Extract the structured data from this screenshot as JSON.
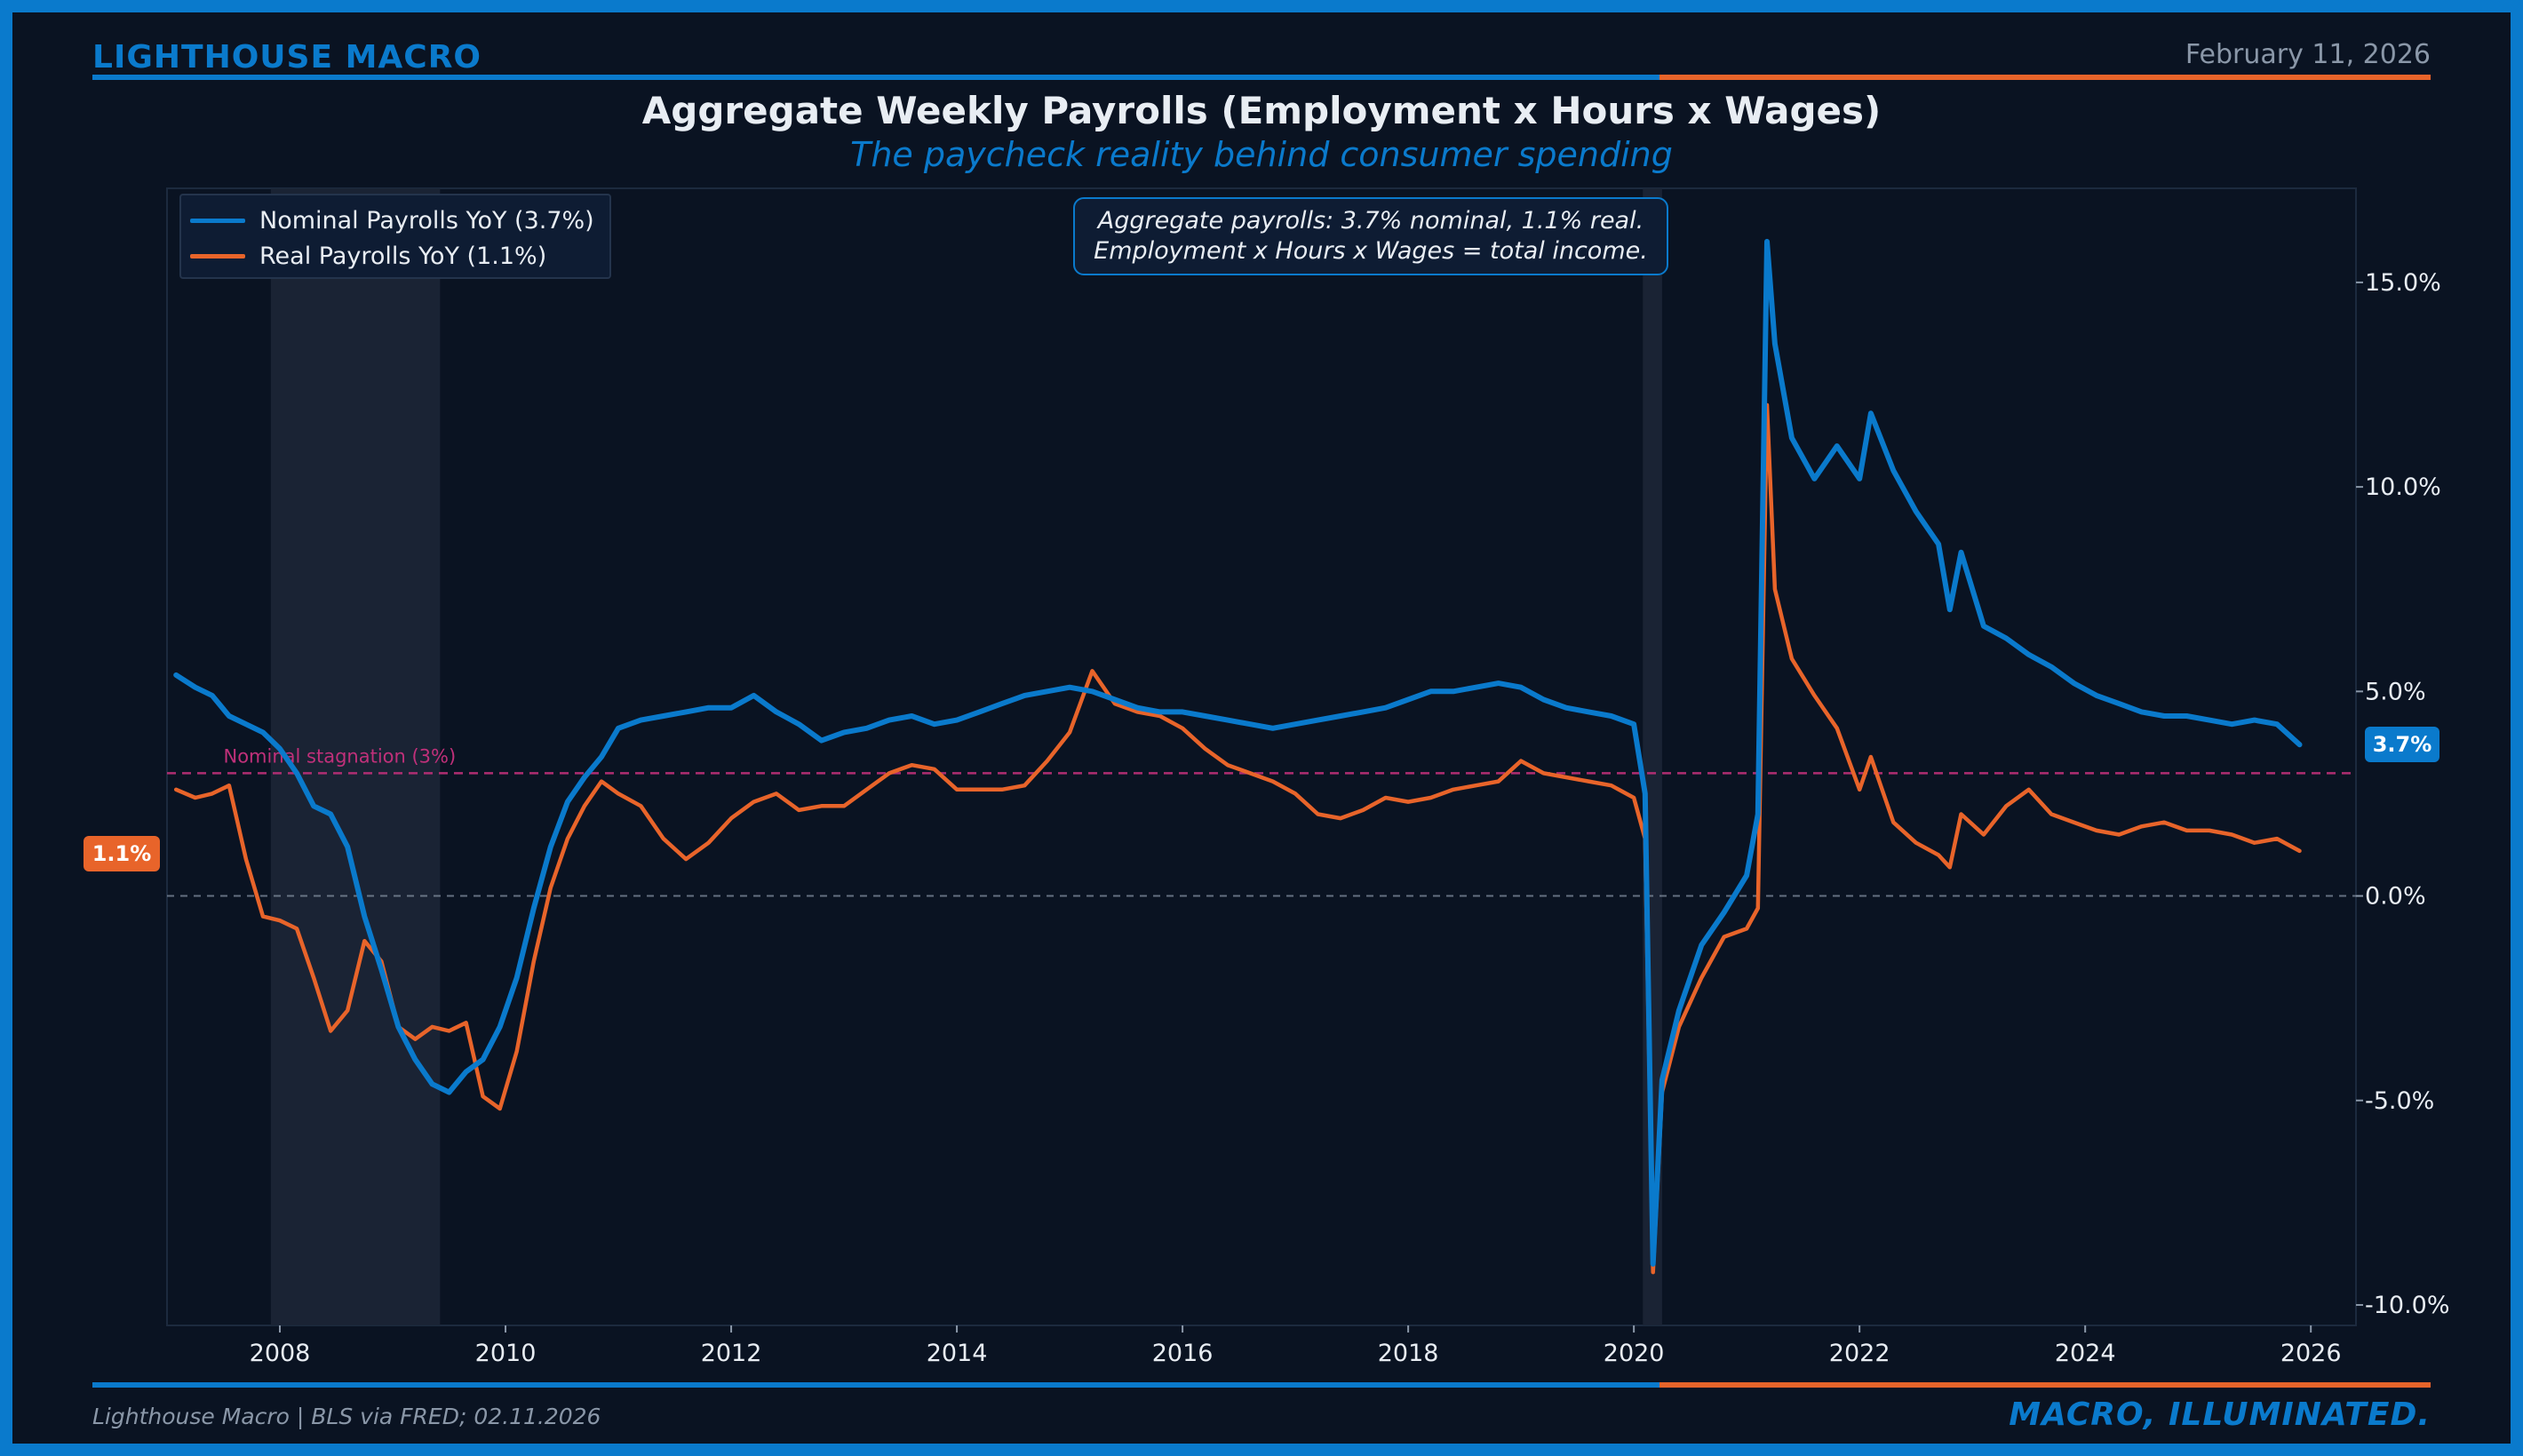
{
  "header": {
    "brand": "LIGHTHOUSE MACRO",
    "date": "February 11, 2026"
  },
  "footer": {
    "source": "Lighthouse Macro | BLS via FRED; 02.11.2026",
    "tagline": "MACRO, ILLUMINATED."
  },
  "colors": {
    "background": "#0a1322",
    "brand_blue": "#0a7acc",
    "nominal": "#0a7acc",
    "real": "#e8642a",
    "stagnation": "#c0307a",
    "recession_shade": "#1c2636"
  },
  "annotation": {
    "line1": "Aggregate payrolls: 3.7% nominal, 1.1% real.",
    "line2": "Employment x Hours x Wages = total income."
  },
  "badges": {
    "nominal_latest": "3.7%",
    "real_latest": "1.1%"
  },
  "chart_data": {
    "type": "line",
    "title": "Aggregate Weekly Payrolls (Employment x Hours x Wages)",
    "subtitle": "The paycheck reality behind consumer spending",
    "xlabel": "",
    "ylabel": "",
    "y_axis_side": "right",
    "xlim": [
      2007.0,
      2026.4
    ],
    "ylim": [
      -10.5,
      17.3
    ],
    "x_ticks": [
      2008,
      2010,
      2012,
      2014,
      2016,
      2018,
      2020,
      2022,
      2024,
      2026
    ],
    "x_tick_labels": [
      "2008",
      "2010",
      "2012",
      "2014",
      "2016",
      "2018",
      "2020",
      "2022",
      "2024",
      "2026"
    ],
    "y_ticks": [
      -10,
      -5,
      0,
      5,
      10,
      15
    ],
    "y_tick_labels": [
      "-10.0%",
      "-5.0%",
      "0.0%",
      "5.0%",
      "10.0%",
      "15.0%"
    ],
    "legend_position": "top-left",
    "recessions": [
      {
        "start": 2007.92,
        "end": 2009.42
      },
      {
        "start": 2020.08,
        "end": 2020.25
      }
    ],
    "reference_lines": [
      {
        "y": 3.0,
        "label": "Nominal stagnation (3%)",
        "style": "dashed"
      },
      {
        "y": 0.0,
        "label": "",
        "style": "dashed"
      }
    ],
    "series": [
      {
        "name": "Nominal Payrolls YoY (3.7%)",
        "x": [
          2007.08,
          2007.25,
          2007.4,
          2007.55,
          2007.7,
          2007.85,
          2008.0,
          2008.15,
          2008.3,
          2008.45,
          2008.6,
          2008.75,
          2008.9,
          2009.05,
          2009.2,
          2009.35,
          2009.5,
          2009.65,
          2009.8,
          2009.95,
          2010.1,
          2010.25,
          2010.4,
          2010.55,
          2010.7,
          2010.85,
          2011.0,
          2011.2,
          2011.4,
          2011.6,
          2011.8,
          2012.0,
          2012.2,
          2012.4,
          2012.6,
          2012.8,
          2013.0,
          2013.2,
          2013.4,
          2013.6,
          2013.8,
          2014.0,
          2014.2,
          2014.4,
          2014.6,
          2014.8,
          2015.0,
          2015.2,
          2015.4,
          2015.6,
          2015.8,
          2016.0,
          2016.2,
          2016.4,
          2016.6,
          2016.8,
          2017.0,
          2017.2,
          2017.4,
          2017.6,
          2017.8,
          2018.0,
          2018.2,
          2018.4,
          2018.6,
          2018.8,
          2019.0,
          2019.2,
          2019.4,
          2019.6,
          2019.8,
          2020.0,
          2020.1,
          2020.17,
          2020.25,
          2020.4,
          2020.6,
          2020.8,
          2021.0,
          2021.1,
          2021.18,
          2021.25,
          2021.4,
          2021.6,
          2021.8,
          2022.0,
          2022.1,
          2022.3,
          2022.5,
          2022.7,
          2022.8,
          2022.9,
          2023.1,
          2023.3,
          2023.5,
          2023.7,
          2023.9,
          2024.1,
          2024.3,
          2024.5,
          2024.7,
          2024.9,
          2025.1,
          2025.3,
          2025.5,
          2025.7,
          2025.9
        ],
        "values": [
          5.4,
          5.1,
          4.9,
          4.4,
          4.2,
          4.0,
          3.6,
          3.0,
          2.2,
          2.0,
          1.2,
          -0.5,
          -1.8,
          -3.2,
          -4.0,
          -4.6,
          -4.8,
          -4.3,
          -4.0,
          -3.2,
          -2.0,
          -0.3,
          1.2,
          2.3,
          2.9,
          3.4,
          4.1,
          4.3,
          4.4,
          4.5,
          4.6,
          4.6,
          4.9,
          4.5,
          4.2,
          3.8,
          4.0,
          4.1,
          4.3,
          4.4,
          4.2,
          4.3,
          4.5,
          4.7,
          4.9,
          5.0,
          5.1,
          5.0,
          4.8,
          4.6,
          4.5,
          4.5,
          4.4,
          4.3,
          4.2,
          4.1,
          4.2,
          4.3,
          4.4,
          4.5,
          4.6,
          4.8,
          5.0,
          5.0,
          5.1,
          5.2,
          5.1,
          4.8,
          4.6,
          4.5,
          4.4,
          4.2,
          2.5,
          -9.0,
          -4.5,
          -2.8,
          -1.2,
          -0.4,
          0.5,
          2.0,
          16.0,
          13.5,
          11.2,
          10.2,
          11.0,
          10.2,
          11.8,
          10.4,
          9.4,
          8.6,
          7.0,
          8.4,
          6.6,
          6.3,
          5.9,
          5.6,
          5.2,
          4.9,
          4.7,
          4.5,
          4.4,
          4.4,
          4.3,
          4.2,
          4.3,
          4.2,
          3.7
        ]
      },
      {
        "name": "Real Payrolls YoY (1.1%)",
        "x": [
          2007.08,
          2007.25,
          2007.4,
          2007.55,
          2007.7,
          2007.85,
          2008.0,
          2008.15,
          2008.3,
          2008.45,
          2008.6,
          2008.75,
          2008.9,
          2009.05,
          2009.2,
          2009.35,
          2009.5,
          2009.65,
          2009.8,
          2009.95,
          2010.1,
          2010.25,
          2010.4,
          2010.55,
          2010.7,
          2010.85,
          2011.0,
          2011.2,
          2011.4,
          2011.6,
          2011.8,
          2012.0,
          2012.2,
          2012.4,
          2012.6,
          2012.8,
          2013.0,
          2013.2,
          2013.4,
          2013.6,
          2013.8,
          2014.0,
          2014.2,
          2014.4,
          2014.6,
          2014.8,
          2015.0,
          2015.2,
          2015.4,
          2015.6,
          2015.8,
          2016.0,
          2016.2,
          2016.4,
          2016.6,
          2016.8,
          2017.0,
          2017.2,
          2017.4,
          2017.6,
          2017.8,
          2018.0,
          2018.2,
          2018.4,
          2018.6,
          2018.8,
          2019.0,
          2019.2,
          2019.4,
          2019.6,
          2019.8,
          2020.0,
          2020.1,
          2020.17,
          2020.25,
          2020.4,
          2020.6,
          2020.8,
          2021.0,
          2021.1,
          2021.18,
          2021.25,
          2021.4,
          2021.6,
          2021.8,
          2022.0,
          2022.1,
          2022.3,
          2022.5,
          2022.7,
          2022.8,
          2022.9,
          2023.1,
          2023.3,
          2023.5,
          2023.7,
          2023.9,
          2024.1,
          2024.3,
          2024.5,
          2024.7,
          2024.9,
          2025.1,
          2025.3,
          2025.5,
          2025.7,
          2025.9
        ],
        "values": [
          2.6,
          2.4,
          2.5,
          2.7,
          0.9,
          -0.5,
          -0.6,
          -0.8,
          -2.0,
          -3.3,
          -2.8,
          -1.1,
          -1.6,
          -3.2,
          -3.5,
          -3.2,
          -3.3,
          -3.1,
          -4.9,
          -5.2,
          -3.8,
          -1.6,
          0.2,
          1.4,
          2.2,
          2.8,
          2.5,
          2.2,
          1.4,
          0.9,
          1.3,
          1.9,
          2.3,
          2.5,
          2.1,
          2.2,
          2.2,
          2.6,
          3.0,
          3.2,
          3.1,
          2.6,
          2.6,
          2.6,
          2.7,
          3.3,
          4.0,
          5.5,
          4.7,
          4.5,
          4.4,
          4.1,
          3.6,
          3.2,
          3.0,
          2.8,
          2.5,
          2.0,
          1.9,
          2.1,
          2.4,
          2.3,
          2.4,
          2.6,
          2.7,
          2.8,
          3.3,
          3.0,
          2.9,
          2.8,
          2.7,
          2.4,
          1.4,
          -9.2,
          -4.8,
          -3.2,
          -2.0,
          -1.0,
          -0.8,
          -0.3,
          12.0,
          7.5,
          5.8,
          4.9,
          4.1,
          2.6,
          3.4,
          1.8,
          1.3,
          1.0,
          0.7,
          2.0,
          1.5,
          2.2,
          2.6,
          2.0,
          1.8,
          1.6,
          1.5,
          1.7,
          1.8,
          1.6,
          1.6,
          1.5,
          1.3,
          1.4,
          1.1
        ]
      }
    ]
  }
}
